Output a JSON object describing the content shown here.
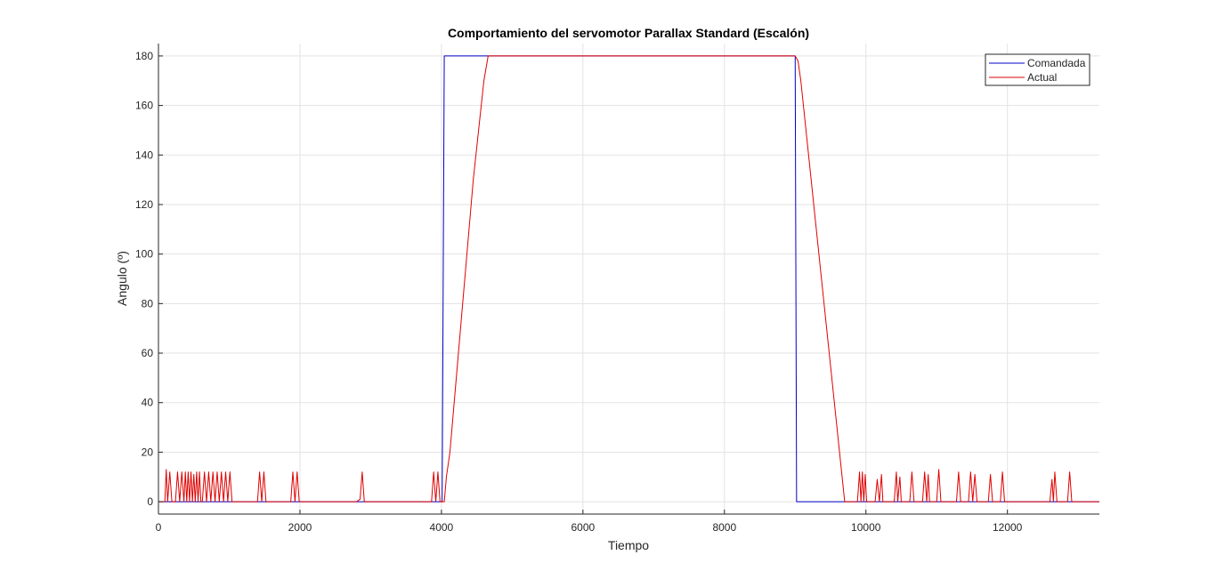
{
  "chart_data": {
    "type": "line",
    "title": "Comportamiento del servomotor Parallax Standard (Escalón)",
    "xlabel": "Tiempo",
    "ylabel": "Angulo (º)",
    "xlim": [
      0,
      13300
    ],
    "ylim": [
      -5,
      185
    ],
    "xticks": [
      0,
      2000,
      4000,
      6000,
      8000,
      10000,
      12000
    ],
    "yticks": [
      0,
      20,
      40,
      60,
      80,
      100,
      120,
      140,
      160,
      180
    ],
    "grid": true,
    "legend_location": "top-right",
    "series": [
      {
        "name": "Comandada",
        "color": "#0000c8",
        "x": [
          0,
          4010,
          4040,
          9000,
          9020,
          13300
        ],
        "y": [
          0,
          0,
          180,
          180,
          0,
          0
        ]
      },
      {
        "name": "Actual",
        "color": "#e00000",
        "x": [
          0,
          90,
          110,
          130,
          160,
          190,
          240,
          270,
          300,
          330,
          360,
          380,
          400,
          420,
          440,
          460,
          480,
          500,
          520,
          540,
          560,
          580,
          600,
          620,
          650,
          680,
          710,
          740,
          770,
          800,
          830,
          860,
          890,
          920,
          950,
          980,
          1010,
          1040,
          1070,
          1400,
          1430,
          1460,
          1490,
          1520,
          1550,
          1870,
          1900,
          1930,
          1960,
          1990,
          2020,
          2800,
          2850,
          2880,
          2910,
          3860,
          3890,
          3920,
          3950,
          3980,
          4040,
          4070,
          4120,
          4180,
          4300,
          4450,
          4600,
          4660,
          4700,
          9000,
          9040,
          9080,
          9700,
          9880,
          9910,
          9930,
          9950,
          9970,
          9990,
          10010,
          10130,
          10160,
          10190,
          10220,
          10240,
          10400,
          10430,
          10450,
          10480,
          10500,
          10620,
          10650,
          10680,
          10800,
          10830,
          10860,
          10880,
          10900,
          11000,
          11030,
          11060,
          11280,
          11310,
          11340,
          11450,
          11480,
          11510,
          11540,
          11570,
          11730,
          11760,
          11790,
          11900,
          11930,
          11960,
          12600,
          12630,
          12650,
          12670,
          12700,
          12850,
          12880,
          12910,
          13300
        ],
        "y": [
          0,
          0,
          13,
          0,
          12,
          0,
          0,
          12,
          0,
          12,
          0,
          12,
          0,
          12,
          0,
          12,
          0,
          11,
          0,
          12,
          0,
          12,
          0,
          0,
          12,
          0,
          12,
          0,
          12,
          0,
          12,
          0,
          12,
          0,
          12,
          0,
          12,
          0,
          0,
          0,
          12,
          0,
          12,
          0,
          0,
          0,
          12,
          0,
          12,
          0,
          0,
          0,
          1,
          12,
          0,
          0,
          12,
          0,
          12,
          0,
          0,
          10,
          20,
          40,
          80,
          130,
          170,
          180,
          180,
          180,
          178,
          170,
          0,
          0,
          12,
          0,
          12,
          0,
          11,
          0,
          0,
          9,
          0,
          11,
          0,
          0,
          12,
          0,
          10,
          0,
          0,
          12,
          0,
          0,
          12,
          0,
          11,
          0,
          0,
          13,
          0,
          0,
          12,
          0,
          0,
          12,
          0,
          11,
          0,
          0,
          11,
          0,
          0,
          12,
          0,
          0,
          9,
          0,
          12,
          0,
          0,
          12,
          0,
          0
        ]
      }
    ]
  }
}
